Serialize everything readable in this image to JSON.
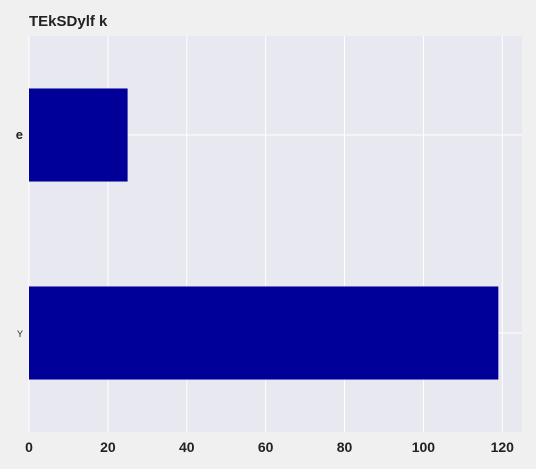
{
  "chart_data": {
    "type": "bar",
    "orientation": "horizontal",
    "title": "TEkSDylf k",
    "categories": [
      "e",
      "Y"
    ],
    "values": [
      25,
      119
    ],
    "xlim": [
      0,
      125
    ],
    "x_ticks": [
      0,
      20,
      40,
      60,
      80,
      100,
      120
    ],
    "xlabel": "",
    "ylabel": "",
    "grid": true,
    "bar_color": "#000099",
    "plot_background": "#e8e8f0",
    "grid_color": "#ffffff"
  }
}
